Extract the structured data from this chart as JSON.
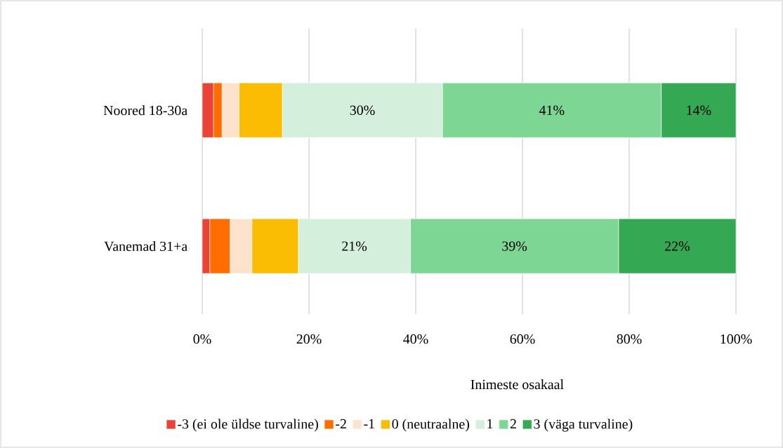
{
  "chart_data": {
    "type": "bar",
    "orientation": "horizontal",
    "stacked": true,
    "categories": [
      "Noored 18-30a",
      "Vanemad 31+a"
    ],
    "series": [
      {
        "name": "-3 (ei ole üldse turvaline)",
        "color": "#ea4335",
        "values": [
          2.1,
          1.4
        ],
        "value_labels": [
          null,
          null
        ]
      },
      {
        "name": "-2",
        "color": "#ff6d01",
        "values": [
          1.6,
          3.8
        ],
        "value_labels": [
          null,
          null
        ]
      },
      {
        "name": "-1",
        "color": "#fde2cc",
        "values": [
          3.2,
          4.1
        ],
        "value_labels": [
          null,
          null
        ]
      },
      {
        "name": "0 (neutraalne)",
        "color": "#fbbc04",
        "values": [
          8.1,
          8.7
        ],
        "value_labels": [
          null,
          null
        ]
      },
      {
        "name": "1",
        "color": "#d4f0dd",
        "values": [
          30,
          21
        ],
        "value_labels": [
          "30%",
          "21%"
        ]
      },
      {
        "name": "2",
        "color": "#7dd694",
        "values": [
          41,
          39
        ],
        "value_labels": [
          "41%",
          "39%"
        ]
      },
      {
        "name": "3 (väga turvaline)",
        "color": "#34a853",
        "values": [
          14,
          22
        ],
        "value_labels": [
          "14%",
          "22%"
        ]
      }
    ],
    "xlim": [
      0,
      100
    ],
    "xticks": [
      {
        "value": 0,
        "label": "0%"
      },
      {
        "value": 20,
        "label": "20%"
      },
      {
        "value": 40,
        "label": "40%"
      },
      {
        "value": 60,
        "label": "60%"
      },
      {
        "value": 80,
        "label": "80%"
      },
      {
        "value": 100,
        "label": "100%"
      }
    ],
    "xlabel": "Inimeste osakaal",
    "grid": "x",
    "legend": "bottom"
  }
}
